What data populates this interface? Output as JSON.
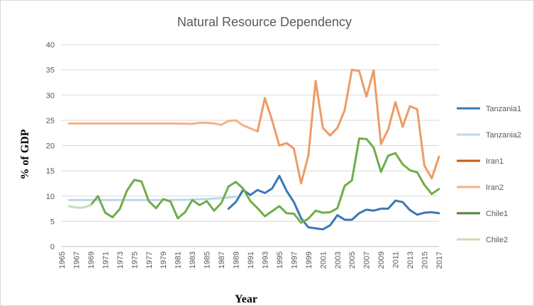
{
  "chart_data": {
    "type": "line",
    "title": "Natural Resource Dependency",
    "xlabel": "Year",
    "ylabel": "% of GDP",
    "ylim": [
      0,
      40
    ],
    "yticks": [
      "0",
      "5",
      "10",
      "15",
      "20",
      "25",
      "30",
      "35",
      "40"
    ],
    "xlim": [
      1965,
      2017
    ],
    "xticks": [
      "1965",
      "1967",
      "1969",
      "1971",
      "1973",
      "1975",
      "1977",
      "1979",
      "1981",
      "1983",
      "1985",
      "1987",
      "1989",
      "1991",
      "1993",
      "1995",
      "1997",
      "1999",
      "2001",
      "2003",
      "2005",
      "2007",
      "2009",
      "2011",
      "2013",
      "2015",
      "2017"
    ],
    "grid": "horizontal",
    "legend_position": "right",
    "series": [
      {
        "name": "Tanzania1",
        "color": "#3a78b5",
        "points": [
          [
            1988,
            7.5
          ],
          [
            1989,
            8.8
          ],
          [
            1990,
            11.2
          ],
          [
            1991,
            10.2
          ],
          [
            1992,
            11.2
          ],
          [
            1993,
            10.6
          ],
          [
            1994,
            11.5
          ],
          [
            1995,
            14.0
          ],
          [
            1996,
            11.0
          ],
          [
            1997,
            8.8
          ],
          [
            1998,
            5.6
          ],
          [
            1999,
            3.8
          ],
          [
            2000,
            3.6
          ],
          [
            2001,
            3.4
          ],
          [
            2002,
            4.2
          ],
          [
            2003,
            6.2
          ],
          [
            2004,
            5.3
          ],
          [
            2005,
            5.3
          ],
          [
            2006,
            6.6
          ],
          [
            2007,
            7.3
          ],
          [
            2008,
            7.1
          ],
          [
            2009,
            7.5
          ],
          [
            2010,
            7.5
          ],
          [
            2011,
            9.1
          ],
          [
            2012,
            8.8
          ],
          [
            2013,
            7.2
          ],
          [
            2014,
            6.3
          ],
          [
            2015,
            6.7
          ],
          [
            2016,
            6.8
          ],
          [
            2017,
            6.6
          ]
        ]
      },
      {
        "name": "Tanzania2",
        "color": "#bdd7ee",
        "points": [
          [
            1966,
            9.2
          ],
          [
            1970,
            9.2
          ],
          [
            1975,
            9.2
          ],
          [
            1980,
            9.2
          ],
          [
            1983,
            9.3
          ],
          [
            1985,
            9.4
          ],
          [
            1987,
            9.6
          ],
          [
            1988,
            9.7
          ],
          [
            1989,
            9.9
          ]
        ]
      },
      {
        "name": "Iran1",
        "color": "#c55a11",
        "points": []
      },
      {
        "name": "Iran2",
        "color": "#f4b183",
        "points": [
          [
            1966,
            24.4
          ],
          [
            1970,
            24.4
          ],
          [
            1975,
            24.4
          ],
          [
            1980,
            24.4
          ],
          [
            1983,
            24.3
          ],
          [
            1984,
            24.5
          ],
          [
            1985,
            24.5
          ],
          [
            1986,
            24.4
          ],
          [
            1987,
            24.1
          ],
          [
            1988,
            24.9
          ],
          [
            1989,
            25.0
          ],
          [
            1990,
            24.0
          ],
          [
            1991,
            23.4
          ],
          [
            1992,
            22.8
          ]
        ]
      },
      {
        "name": "Iran2-overlay",
        "color": "#ed9b65",
        "points": [
          [
            1992,
            22.8
          ],
          [
            1993,
            29.4
          ],
          [
            1994,
            25.0
          ],
          [
            1995,
            20.0
          ],
          [
            1996,
            20.5
          ],
          [
            1997,
            19.4
          ],
          [
            1998,
            12.5
          ],
          [
            1999,
            18.0
          ],
          [
            2000,
            32.8
          ],
          [
            2001,
            23.5
          ],
          [
            2002,
            22.0
          ],
          [
            2003,
            23.5
          ],
          [
            2004,
            27.0
          ],
          [
            2005,
            35.0
          ],
          [
            2006,
            34.8
          ],
          [
            2007,
            29.7
          ],
          [
            2008,
            34.9
          ],
          [
            2009,
            20.3
          ],
          [
            2010,
            23.2
          ],
          [
            2011,
            28.6
          ],
          [
            2012,
            23.7
          ],
          [
            2013,
            27.8
          ],
          [
            2014,
            27.2
          ],
          [
            2015,
            16.0
          ],
          [
            2016,
            13.5
          ],
          [
            2017,
            17.8
          ]
        ]
      },
      {
        "name": "Chile1",
        "color": "#548235",
        "points": []
      },
      {
        "name": "Chile1-line",
        "color": "#70ad47",
        "points": [
          [
            1969,
            8.2
          ],
          [
            1970,
            10.0
          ],
          [
            1971,
            6.7
          ],
          [
            1972,
            5.8
          ],
          [
            1973,
            7.4
          ],
          [
            1974,
            11.1
          ],
          [
            1975,
            13.2
          ],
          [
            1976,
            12.9
          ],
          [
            1977,
            9.0
          ],
          [
            1978,
            7.6
          ],
          [
            1979,
            9.4
          ],
          [
            1980,
            8.9
          ],
          [
            1981,
            5.6
          ],
          [
            1982,
            6.8
          ],
          [
            1983,
            9.2
          ],
          [
            1984,
            8.2
          ],
          [
            1985,
            9.0
          ],
          [
            1986,
            7.1
          ],
          [
            1987,
            8.6
          ],
          [
            1988,
            11.9
          ],
          [
            1989,
            12.8
          ],
          [
            1990,
            11.5
          ],
          [
            1991,
            9.0
          ],
          [
            1992,
            7.6
          ],
          [
            1993,
            6.0
          ],
          [
            1994,
            7.0
          ],
          [
            1995,
            8.0
          ],
          [
            1996,
            6.6
          ],
          [
            1997,
            6.5
          ],
          [
            1998,
            4.7
          ],
          [
            1999,
            5.5
          ],
          [
            2000,
            7.1
          ],
          [
            2001,
            6.7
          ],
          [
            2002,
            6.8
          ],
          [
            2003,
            7.6
          ],
          [
            2004,
            12.0
          ],
          [
            2005,
            13.1
          ],
          [
            2006,
            21.4
          ],
          [
            2007,
            21.3
          ],
          [
            2008,
            19.6
          ],
          [
            2009,
            14.8
          ],
          [
            2010,
            18.0
          ],
          [
            2011,
            18.5
          ],
          [
            2012,
            16.3
          ],
          [
            2013,
            15.1
          ],
          [
            2014,
            14.7
          ],
          [
            2015,
            12.2
          ],
          [
            2016,
            10.4
          ],
          [
            2017,
            11.4
          ]
        ]
      },
      {
        "name": "Chile2",
        "color": "#c5e0b4",
        "points": [
          [
            1966,
            8.0
          ],
          [
            1967,
            7.7
          ],
          [
            1968,
            7.7
          ],
          [
            1969,
            8.2
          ]
        ]
      }
    ],
    "legend": [
      {
        "label": "Tanzania1",
        "color": "#3a78b5"
      },
      {
        "label": "Tanzania2",
        "color": "#bdd7ee"
      },
      {
        "label": "Iran1",
        "color": "#c55a11"
      },
      {
        "label": "Iran2",
        "color": "#f4b183"
      },
      {
        "label": "Chile1",
        "color": "#548235"
      },
      {
        "label": "Chile2",
        "color": "#c5e0b4"
      }
    ]
  }
}
